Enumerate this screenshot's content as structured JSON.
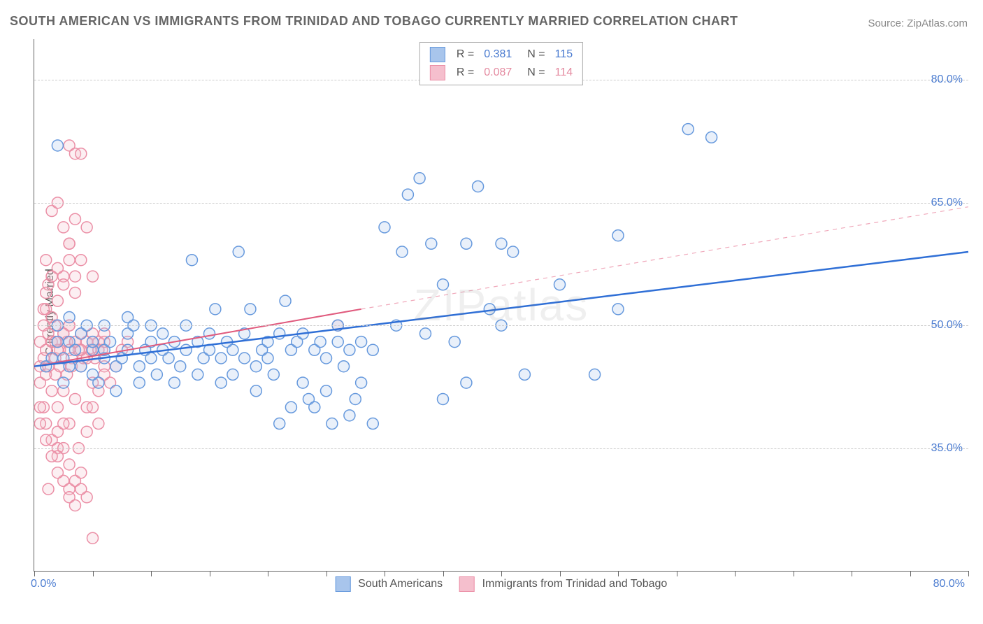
{
  "title": "SOUTH AMERICAN VS IMMIGRANTS FROM TRINIDAD AND TOBAGO CURRENTLY MARRIED CORRELATION CHART",
  "source": "Source: ZipAtlas.com",
  "watermark": "ZIPatlas",
  "ylabel": "Currently Married",
  "chart": {
    "type": "scatter",
    "xlim": [
      0,
      80
    ],
    "ylim": [
      20,
      85
    ],
    "x_tick_labels": {
      "min": "0.0%",
      "max": "80.0%"
    },
    "y_ticks": [
      35.0,
      50.0,
      65.0,
      80.0
    ],
    "y_tick_labels": [
      "35.0%",
      "50.0%",
      "65.0%",
      "80.0%"
    ],
    "x_minor_ticks": [
      0,
      5,
      10,
      15,
      20,
      25,
      30,
      35,
      40,
      45,
      50,
      55,
      60,
      65,
      70,
      75,
      80
    ],
    "grid_color": "#cccccc",
    "background_color": "#ffffff",
    "marker_radius": 8,
    "marker_stroke_width": 1.5,
    "marker_fill_opacity": 0.25,
    "series": [
      {
        "name": "South Americans",
        "color_stroke": "#6699dd",
        "color_fill": "#a8c5ec",
        "R": "0.381",
        "N": "115",
        "trend": {
          "x1": 0,
          "y1": 45,
          "x2": 80,
          "y2": 59,
          "style": "solid",
          "width": 2.5,
          "color": "#2f6fd6"
        },
        "points": [
          [
            1,
            45
          ],
          [
            1.5,
            46
          ],
          [
            2,
            48
          ],
          [
            2,
            50
          ],
          [
            2.5,
            43
          ],
          [
            2.5,
            46
          ],
          [
            3,
            48
          ],
          [
            3,
            45
          ],
          [
            3,
            51
          ],
          [
            3.5,
            47
          ],
          [
            4,
            45
          ],
          [
            4,
            49
          ],
          [
            4.5,
            50
          ],
          [
            5,
            44
          ],
          [
            5,
            47
          ],
          [
            5,
            48
          ],
          [
            5.5,
            43
          ],
          [
            6,
            46
          ],
          [
            6,
            50
          ],
          [
            6,
            47
          ],
          [
            6.5,
            48
          ],
          [
            7,
            45
          ],
          [
            7,
            42
          ],
          [
            7.5,
            46
          ],
          [
            8,
            49
          ],
          [
            8,
            47
          ],
          [
            8,
            51
          ],
          [
            8.5,
            50
          ],
          [
            9,
            45
          ],
          [
            9,
            43
          ],
          [
            9.5,
            47
          ],
          [
            10,
            48
          ],
          [
            10,
            46
          ],
          [
            10,
            50
          ],
          [
            10.5,
            44
          ],
          [
            11,
            47
          ],
          [
            11,
            49
          ],
          [
            11.5,
            46
          ],
          [
            12,
            48
          ],
          [
            12,
            43
          ],
          [
            12.5,
            45
          ],
          [
            13,
            47
          ],
          [
            13,
            50
          ],
          [
            13.5,
            58
          ],
          [
            14,
            44
          ],
          [
            14,
            48
          ],
          [
            14.5,
            46
          ],
          [
            15,
            47
          ],
          [
            15,
            49
          ],
          [
            15.5,
            52
          ],
          [
            16,
            43
          ],
          [
            16,
            46
          ],
          [
            16.5,
            48
          ],
          [
            17,
            47
          ],
          [
            17,
            44
          ],
          [
            17.5,
            59
          ],
          [
            18,
            46
          ],
          [
            18,
            49
          ],
          [
            18.5,
            52
          ],
          [
            19,
            42
          ],
          [
            19,
            45
          ],
          [
            19.5,
            47
          ],
          [
            20,
            48
          ],
          [
            20,
            46
          ],
          [
            20.5,
            44
          ],
          [
            21,
            38
          ],
          [
            21,
            49
          ],
          [
            21.5,
            53
          ],
          [
            22,
            40
          ],
          [
            22,
            47
          ],
          [
            22.5,
            48
          ],
          [
            23,
            43
          ],
          [
            23,
            49
          ],
          [
            23.5,
            41
          ],
          [
            24,
            47
          ],
          [
            24,
            40
          ],
          [
            24.5,
            48
          ],
          [
            25,
            42
          ],
          [
            25,
            46
          ],
          [
            25.5,
            38
          ],
          [
            26,
            48
          ],
          [
            26,
            50
          ],
          [
            26.5,
            45
          ],
          [
            27,
            39
          ],
          [
            27,
            47
          ],
          [
            27.5,
            41
          ],
          [
            28,
            48
          ],
          [
            28,
            43
          ],
          [
            29,
            47
          ],
          [
            29,
            38
          ],
          [
            30,
            62
          ],
          [
            31,
            50
          ],
          [
            31.5,
            59
          ],
          [
            32,
            66
          ],
          [
            33,
            68
          ],
          [
            33.5,
            49
          ],
          [
            34,
            60
          ],
          [
            35,
            41
          ],
          [
            35,
            55
          ],
          [
            36,
            48
          ],
          [
            37,
            60
          ],
          [
            37,
            43
          ],
          [
            38,
            67
          ],
          [
            39,
            52
          ],
          [
            40,
            60
          ],
          [
            40,
            50
          ],
          [
            41,
            59
          ],
          [
            42,
            44
          ],
          [
            45,
            55
          ],
          [
            48,
            44
          ],
          [
            50,
            52
          ],
          [
            50,
            61
          ],
          [
            56,
            74
          ],
          [
            58,
            73
          ],
          [
            2,
            72
          ]
        ]
      },
      {
        "name": "Immigrants from Trinidad and Tobago",
        "color_stroke": "#eb8fa6",
        "color_fill": "#f5bfcd",
        "R": "0.087",
        "N": "114",
        "trend_solid": {
          "x1": 0,
          "y1": 45,
          "x2": 28,
          "y2": 52,
          "style": "solid",
          "width": 2,
          "color": "#e05a7d"
        },
        "trend_dashed": {
          "x1": 28,
          "y1": 52,
          "x2": 80,
          "y2": 64.5,
          "style": "dashed",
          "width": 1.2,
          "color": "#f0a9bb"
        },
        "points": [
          [
            0.5,
            45
          ],
          [
            0.5,
            48
          ],
          [
            0.5,
            43
          ],
          [
            0.8,
            50
          ],
          [
            0.8,
            46
          ],
          [
            0.8,
            40
          ],
          [
            1,
            47
          ],
          [
            1,
            52
          ],
          [
            1,
            44
          ],
          [
            1,
            38
          ],
          [
            1.2,
            49
          ],
          [
            1.2,
            45
          ],
          [
            1.2,
            55
          ],
          [
            1.5,
            48
          ],
          [
            1.5,
            42
          ],
          [
            1.5,
            51
          ],
          [
            1.5,
            36
          ],
          [
            1.8,
            46
          ],
          [
            1.8,
            50
          ],
          [
            1.8,
            44
          ],
          [
            2,
            48
          ],
          [
            2,
            40
          ],
          [
            2,
            53
          ],
          [
            2,
            35
          ],
          [
            2.2,
            47
          ],
          [
            2.2,
            45
          ],
          [
            2.5,
            49
          ],
          [
            2.5,
            42
          ],
          [
            2.5,
            56
          ],
          [
            2.5,
            31
          ],
          [
            2.8,
            48
          ],
          [
            2.8,
            44
          ],
          [
            3,
            47
          ],
          [
            3,
            50
          ],
          [
            3,
            38
          ],
          [
            3,
            60
          ],
          [
            3.2,
            46
          ],
          [
            3.2,
            45
          ],
          [
            3.5,
            48
          ],
          [
            3.5,
            41
          ],
          [
            3.5,
            54
          ],
          [
            3.8,
            47
          ],
          [
            3.8,
            35
          ],
          [
            4,
            49
          ],
          [
            4,
            45
          ],
          [
            4,
            58
          ],
          [
            4.2,
            46
          ],
          [
            4.5,
            48
          ],
          [
            4.5,
            40
          ],
          [
            4.5,
            62
          ],
          [
            4.8,
            47
          ],
          [
            5,
            49
          ],
          [
            5,
            43
          ],
          [
            5,
            56
          ],
          [
            5.2,
            46
          ],
          [
            5.5,
            48
          ],
          [
            5.5,
            38
          ],
          [
            5.8,
            47
          ],
          [
            6,
            49
          ],
          [
            6,
            45
          ],
          [
            3,
            72
          ],
          [
            3.5,
            71
          ],
          [
            4,
            71
          ],
          [
            1.5,
            64
          ],
          [
            2,
            65
          ],
          [
            2.5,
            62
          ],
          [
            3,
            60
          ],
          [
            3.5,
            63
          ],
          [
            2,
            57
          ],
          [
            2.5,
            55
          ],
          [
            3,
            58
          ],
          [
            3.5,
            56
          ],
          [
            2,
            37
          ],
          [
            2.5,
            35
          ],
          [
            3,
            33
          ],
          [
            2,
            34
          ],
          [
            3,
            30
          ],
          [
            3.5,
            31
          ],
          [
            4,
            32
          ],
          [
            4.5,
            29
          ],
          [
            3,
            29
          ],
          [
            3.5,
            28
          ],
          [
            4,
            30
          ],
          [
            2.5,
            38
          ],
          [
            1,
            58
          ],
          [
            1.5,
            56
          ],
          [
            1,
            54
          ],
          [
            0.8,
            52
          ],
          [
            0.5,
            40
          ],
          [
            0.5,
            38
          ],
          [
            1,
            36
          ],
          [
            1.5,
            34
          ],
          [
            2,
            32
          ],
          [
            1.2,
            30
          ],
          [
            5,
            24
          ],
          [
            4.5,
            37
          ],
          [
            5,
            40
          ],
          [
            5.5,
            42
          ],
          [
            6,
            44
          ],
          [
            6.5,
            43
          ],
          [
            7,
            45
          ],
          [
            3,
            50
          ],
          [
            3.5,
            48
          ],
          [
            4,
            47
          ],
          [
            4.5,
            46
          ],
          [
            5,
            48
          ],
          [
            5.5,
            47
          ],
          [
            6,
            48
          ],
          [
            7.5,
            47
          ],
          [
            8,
            48
          ],
          [
            2,
            47
          ],
          [
            2.5,
            49
          ],
          [
            1.8,
            48
          ],
          [
            26,
            50
          ]
        ]
      }
    ]
  },
  "legend_bottom": [
    {
      "label": "South Americans",
      "fill": "#a8c5ec",
      "stroke": "#6699dd"
    },
    {
      "label": "Immigrants from Trinidad and Tobago",
      "fill": "#f5bfcd",
      "stroke": "#eb8fa6"
    }
  ]
}
